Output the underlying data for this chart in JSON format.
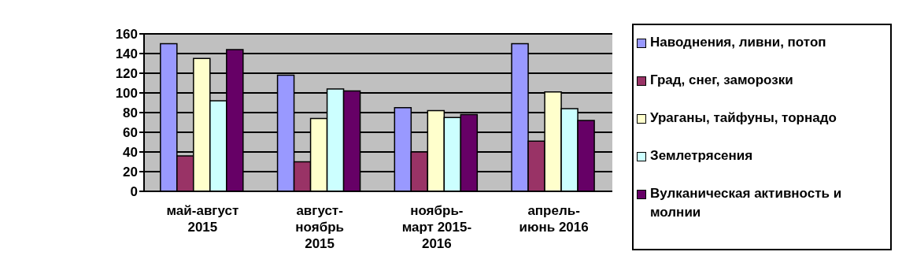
{
  "chart_data": {
    "type": "bar",
    "categories": [
      "май-август 2015",
      "август-ноябрь 2015",
      "ноябрь-март 2015-2016",
      "апрель-июнь 2016"
    ],
    "series": [
      {
        "name": "Наводнения, ливни, потоп",
        "color": "#9999ff",
        "values": [
          150,
          118,
          85,
          150
        ]
      },
      {
        "name": "Град, снег, заморозки",
        "color": "#993366",
        "values": [
          36,
          30,
          40,
          51
        ]
      },
      {
        "name": "Ураганы, тайфуны, торнадо",
        "color": "#ffffcc",
        "values": [
          135,
          74,
          82,
          101
        ]
      },
      {
        "name": "Землетрясения",
        "color": "#ccffff",
        "values": [
          92,
          104,
          75,
          84
        ]
      },
      {
        "name": "Вулканическая активность и молнии",
        "color": "#660066",
        "values": [
          144,
          102,
          78,
          72
        ]
      }
    ],
    "ylim": [
      0,
      160
    ],
    "yticks": [
      0,
      20,
      40,
      60,
      80,
      100,
      120,
      140,
      160
    ],
    "grid": "y",
    "legend": "right"
  }
}
